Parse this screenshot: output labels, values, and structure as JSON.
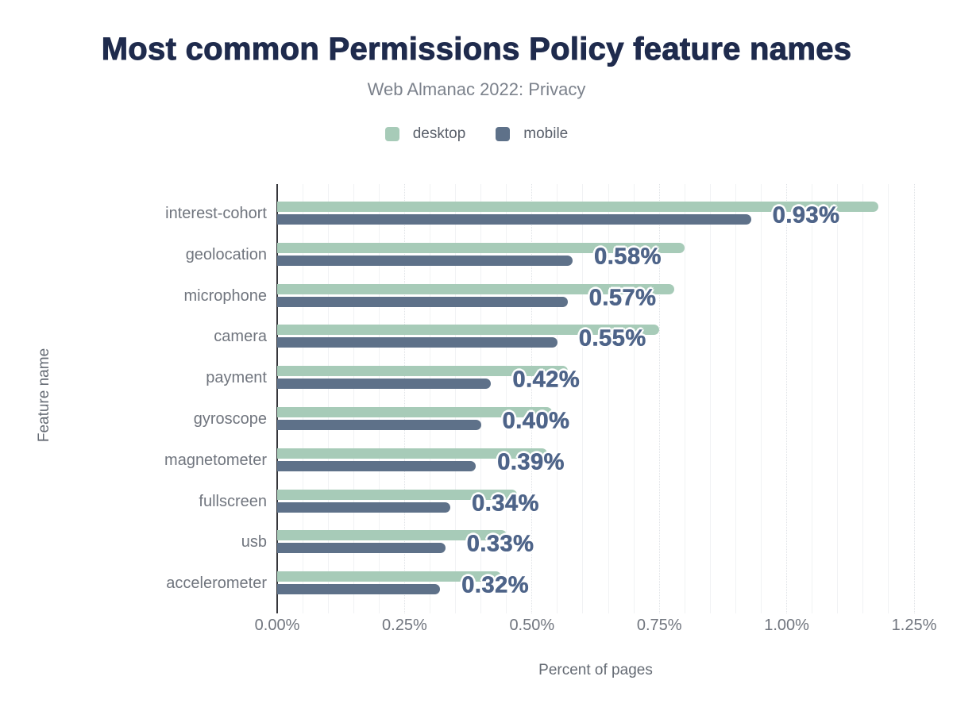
{
  "title": "Most common Permissions Policy feature names",
  "subtitle": "Web Almanac 2022: Privacy",
  "legend": [
    {
      "label": "desktop",
      "color": "#a7cbb8"
    },
    {
      "label": "mobile",
      "color": "#5e7189"
    }
  ],
  "colors": {
    "title": "#1f2b4d",
    "desktop_bar": "#a7cbb8",
    "mobile_bar": "#5e7189",
    "value_label": "#4e6489",
    "axis_line": "#36373b"
  },
  "chart_data": {
    "type": "bar",
    "orientation": "horizontal",
    "title": "Most common Permissions Policy feature names",
    "subtitle": "Web Almanac 2022: Privacy",
    "categories": [
      "interest-cohort",
      "geolocation",
      "microphone",
      "camera",
      "payment",
      "gyroscope",
      "magnetometer",
      "fullscreen",
      "usb",
      "accelerometer"
    ],
    "series": [
      {
        "name": "desktop",
        "color": "#a7cbb8",
        "values": [
          1.18,
          0.8,
          0.78,
          0.75,
          0.57,
          0.54,
          0.53,
          0.47,
          0.45,
          0.44
        ]
      },
      {
        "name": "mobile",
        "color": "#5e7189",
        "values": [
          0.93,
          0.58,
          0.57,
          0.55,
          0.42,
          0.4,
          0.39,
          0.34,
          0.33,
          0.32
        ]
      }
    ],
    "value_labels": [
      "0.93%",
      "0.58%",
      "0.57%",
      "0.55%",
      "0.42%",
      "0.40%",
      "0.39%",
      "0.34%",
      "0.33%",
      "0.32%"
    ],
    "value_labels_series": "mobile",
    "xlabel": "Percent of pages",
    "ylabel": "Feature name",
    "xlim": [
      0,
      1.25
    ],
    "xticks": [
      "0.00%",
      "0.25%",
      "0.50%",
      "0.75%",
      "1.00%",
      "1.25%"
    ],
    "xtick_values": [
      0,
      0.25,
      0.5,
      0.75,
      1.0,
      1.25
    ],
    "grid": {
      "minor_step": 0.05,
      "minor_style": "solid",
      "major_step": 0.25,
      "major_style": "dotted"
    },
    "legend_position": "top"
  }
}
